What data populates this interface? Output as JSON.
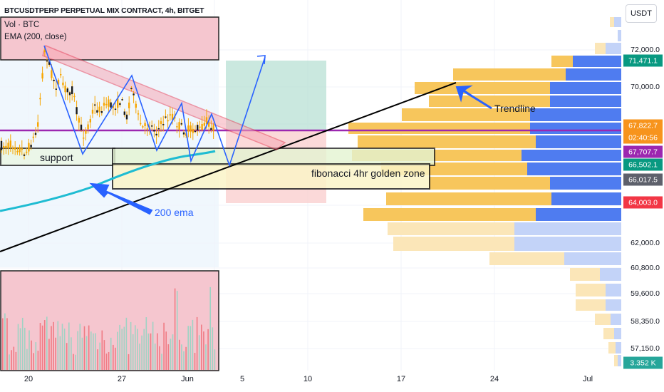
{
  "header": {
    "title": "BTCUSDTPERP PERPETUAL MIX CONTRACT, 4h, BITGET",
    "volume_label": "Vol · BTC",
    "ema_label": "EMA (200, close)"
  },
  "currency_button": "USDT",
  "annotations": {
    "support": "support",
    "trendline": "Trendline",
    "ema200": "200 ema",
    "fib_zone": "fibonacci 4hr golden zone"
  },
  "price_axis": {
    "ticks": [
      "72,000.0",
      "70,000.0",
      "62,000.0",
      "60,800.0",
      "59,600.0",
      "58,350.0",
      "57,150.0"
    ],
    "badges": [
      {
        "text": "71,471.1",
        "color": "#089981"
      },
      {
        "text": "67,822.7",
        "color": "#f7941d"
      },
      {
        "text": "02:40:56",
        "color": "#f7941d"
      },
      {
        "text": "67,707.7",
        "color": "#9c27b0"
      },
      {
        "text": "66,502.1",
        "color": "#089981"
      },
      {
        "text": "66,017.5",
        "color": "#5d606b"
      },
      {
        "text": "64,003.0",
        "color": "#f23645"
      },
      {
        "text": "3.352 K",
        "color": "#26a69a"
      }
    ]
  },
  "time_axis": [
    "20",
    "27",
    "Jun",
    "5",
    "10",
    "17",
    "24",
    "Jul"
  ],
  "colors": {
    "candle": "#f7a600",
    "candle_body": "#000000",
    "ema": "#1fbcd2",
    "trendline": "#000000",
    "purple_line": "#9c27b0",
    "wedge": "#f23645",
    "projection": "#2962ff",
    "vp_blue": "#4f7cf0",
    "vp_orange": "#f7c65c"
  }
}
